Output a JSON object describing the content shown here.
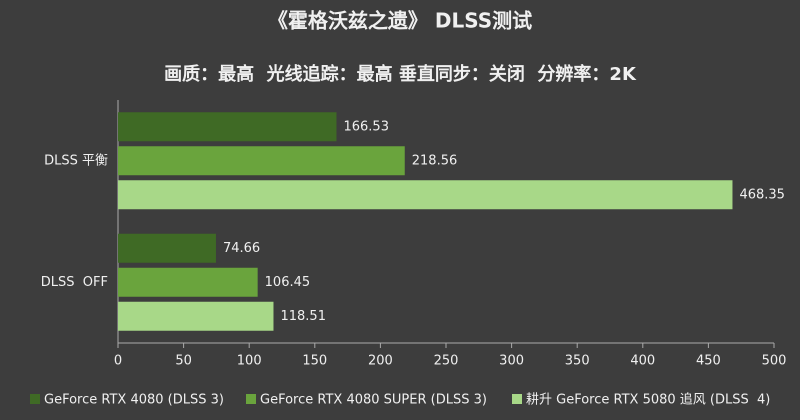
{
  "chart_data": {
    "type": "hbar",
    "title": "《霍格沃兹之遗》 DLSS测试",
    "subtitle": "画质：最高  光线追踪：最高 垂直同步：关闭  分辨率：2K",
    "categories": [
      "DLSS 平衡",
      "DLSS  OFF"
    ],
    "series": [
      {
        "name": "GeForce RTX 4080 (DLSS 3)",
        "color": "#3f6a25",
        "values": [
          166.53,
          74.66
        ]
      },
      {
        "name": "GeForce RTX 4080 SUPER (DLSS 3)",
        "color": "#6aa43d",
        "values": [
          218.56,
          106.45
        ]
      },
      {
        "name": "耕升 GeForce RTX 5080 追风 (DLSS  4)",
        "color": "#a8d888",
        "values": [
          468.35,
          118.51
        ]
      }
    ],
    "xlim": [
      0,
      500
    ],
    "xticks": [
      0,
      50,
      100,
      150,
      200,
      250,
      300,
      350,
      400,
      450,
      500
    ],
    "grid": false,
    "legend": "bottom"
  }
}
